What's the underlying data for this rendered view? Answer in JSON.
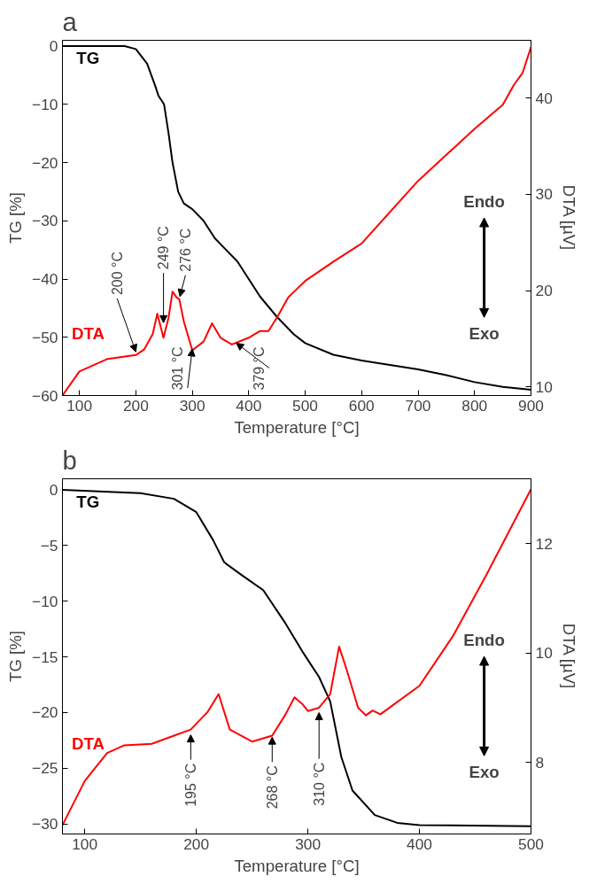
{
  "chart_data": [
    {
      "type": "line",
      "title": "a",
      "xlabel": "Temperature [°C]",
      "ylabel": "TG [%]",
      "y2label": "DTA [µV]",
      "xlim": [
        70,
        900
      ],
      "xticks": [
        100,
        200,
        300,
        400,
        500,
        600,
        700,
        800,
        900
      ],
      "ylim": [
        -60,
        1
      ],
      "yticks": [
        -60,
        -50,
        -40,
        -30,
        -20,
        -10,
        0
      ],
      "y2lim": [
        9.1,
        46
      ],
      "y2ticks": [
        10,
        20,
        30,
        40
      ],
      "grid": false,
      "series": [
        {
          "name": "TG",
          "color": "#000000",
          "x": [
            70,
            180,
            200,
            220,
            235,
            240,
            250,
            258,
            265,
            275,
            285,
            300,
            320,
            340,
            360,
            380,
            400,
            420,
            450,
            480,
            500,
            550,
            600,
            700,
            750,
            800,
            850,
            900
          ],
          "values": [
            0,
            0,
            -0.5,
            -3,
            -7,
            -8.5,
            -10,
            -15,
            -20,
            -25,
            -27,
            -28,
            -30,
            -33,
            -35,
            -37,
            -40,
            -43,
            -46.5,
            -49.5,
            -51,
            -53,
            -54,
            -55.5,
            -56.5,
            -57.7,
            -58.5,
            -59
          ]
        },
        {
          "name": "DTA",
          "color": "#ff0000",
          "axis": "y2",
          "x": [
            70,
            100,
            150,
            200,
            215,
            230,
            238,
            249,
            258,
            265,
            272,
            277,
            285,
            300,
            320,
            335,
            350,
            370,
            400,
            420,
            435,
            450,
            470,
            500,
            550,
            600,
            700,
            800,
            850,
            870,
            885,
            900
          ],
          "values": [
            9.1,
            11.6,
            12.9,
            13.3,
            13.9,
            15.5,
            17.6,
            15.1,
            17.2,
            19.9,
            19.3,
            19.1,
            16.8,
            13.8,
            14.7,
            16.6,
            15.1,
            14.4,
            15.1,
            15.8,
            15.8,
            17.2,
            19.3,
            21,
            23,
            24.9,
            31.4,
            36.8,
            39.3,
            41.4,
            42.6,
            45.3
          ]
        }
      ],
      "annotations": [
        {
          "text": "200 °C",
          "x": 200,
          "y": -52.5
        },
        {
          "text": "249 °C",
          "x": 249,
          "y": -47.5
        },
        {
          "text": "276 °C",
          "x": 278,
          "y": -43
        },
        {
          "text": "301 °C",
          "x": 300,
          "y": -52
        },
        {
          "text": "379 °C",
          "x": 378,
          "y": -51
        },
        "Endo",
        "Exo"
      ]
    },
    {
      "type": "line",
      "title": "b",
      "xlabel": "Temperature [°C]",
      "ylabel": "TG [%]",
      "y2label": "DTA [µV]",
      "xlim": [
        80,
        500
      ],
      "xticks": [
        100,
        200,
        300,
        400,
        500
      ],
      "ylim": [
        -30.9,
        1
      ],
      "yticks": [
        -30,
        -25,
        -20,
        -15,
        -10,
        -5,
        0
      ],
      "y2lim": [
        6.69,
        13.19
      ],
      "y2ticks": [
        8,
        10,
        12
      ],
      "grid": false,
      "series": [
        {
          "name": "TG",
          "color": "#000000",
          "x": [
            80,
            150,
            180,
            200,
            215,
            225,
            240,
            260,
            280,
            295,
            310,
            320,
            330,
            340,
            360,
            380,
            400,
            500
          ],
          "values": [
            0,
            -0.3,
            -0.8,
            -2,
            -4.5,
            -6.5,
            -7.6,
            -9,
            -12,
            -14.5,
            -16.8,
            -19,
            -24,
            -27,
            -29.2,
            -29.9,
            -30.1,
            -30.2
          ]
        },
        {
          "name": "DTA",
          "color": "#ff0000",
          "axis": "y2",
          "x": [
            80,
            100,
            120,
            135,
            160,
            180,
            195,
            210,
            220,
            230,
            250,
            268,
            280,
            288,
            295,
            300,
            310,
            320,
            328,
            335,
            345,
            352,
            358,
            365,
            400,
            430,
            460,
            500
          ],
          "values": [
            6.85,
            7.66,
            8.17,
            8.31,
            8.34,
            8.49,
            8.6,
            8.92,
            9.25,
            8.6,
            8.38,
            8.49,
            8.88,
            9.19,
            9.07,
            8.94,
            9.0,
            9.25,
            10.12,
            9.68,
            9.0,
            8.86,
            8.95,
            8.88,
            9.4,
            10.31,
            11.43,
            13.0
          ]
        }
      ],
      "annotations": [
        {
          "text": "195 °C",
          "x": 195,
          "y": -22
        },
        {
          "text": "268 °C",
          "x": 268,
          "y": -22.2
        },
        {
          "text": "310 °C",
          "x": 310,
          "y": -20
        },
        "Endo",
        "Exo"
      ]
    }
  ]
}
